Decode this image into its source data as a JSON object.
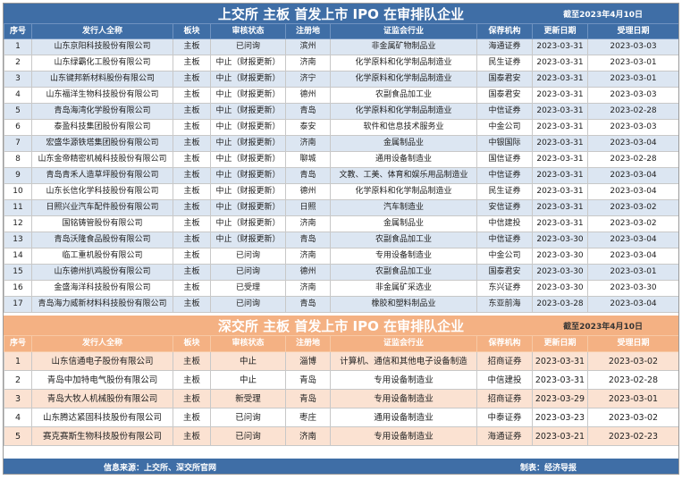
{
  "sh": {
    "title": "上交所 主板 首发上市 IPO 在审排队企业",
    "date": "截至2023年4月10日",
    "headers": [
      "序号",
      "发行人全称",
      "板块",
      "审核状态",
      "注册地",
      "证监会行业",
      "保荐机构",
      "更新日期",
      "受理日期"
    ],
    "rows": [
      [
        "1",
        "山东京阳科技股份有限公司",
        "主板",
        "已问询",
        "滨州",
        "非金属矿物制品业",
        "海通证券",
        "2023-03-31",
        "2023-03-03"
      ],
      [
        "2",
        "山东绿霸化工股份有限公司",
        "主板",
        "中止（财报更新）",
        "济南",
        "化学原料和化学制品制造业",
        "民生证券",
        "2023-03-31",
        "2023-03-01"
      ],
      [
        "3",
        "山东键邦新材料股份有限公司",
        "主板",
        "中止（财报更新）",
        "济宁",
        "化学原料和化学制品制造业",
        "国泰君安",
        "2023-03-31",
        "2023-03-01"
      ],
      [
        "4",
        "山东福洋生物科技股份有限公司",
        "主板",
        "中止（财报更新）",
        "德州",
        "农副食品加工业",
        "国泰君安",
        "2023-03-31",
        "2023-03-03"
      ],
      [
        "5",
        "青岛海湾化学股份有限公司",
        "主板",
        "中止（财报更新）",
        "青岛",
        "化学原料和化学制品制造业",
        "中信证券",
        "2023-03-31",
        "2023-02-28"
      ],
      [
        "6",
        "泰盈科技集团股份有限公司",
        "主板",
        "中止（财报更新）",
        "泰安",
        "软件和信息技术服务业",
        "中金公司",
        "2023-03-31",
        "2023-03-03"
      ],
      [
        "7",
        "宏盛华源铁塔集团股份有限公司",
        "主板",
        "中止（财报更新）",
        "济南",
        "金属制品业",
        "中银国际",
        "2023-03-31",
        "2023-03-04"
      ],
      [
        "8",
        "山东金帝精密机械科技股份有限公司",
        "主板",
        "中止（财报更新）",
        "聊城",
        "通用设备制造业",
        "国信证券",
        "2023-03-31",
        "2023-02-28"
      ],
      [
        "9",
        "青岛青禾人造草坪股份有限公司",
        "主板",
        "中止（财报更新）",
        "青岛",
        "文教、工美、体育和娱乐用品制造业",
        "中信证券",
        "2023-03-31",
        "2023-03-04"
      ],
      [
        "10",
        "山东长信化学科技股份有限公司",
        "主板",
        "中止（财报更新）",
        "德州",
        "化学原料和化学制品制造业",
        "民生证券",
        "2023-03-31",
        "2023-03-04"
      ],
      [
        "11",
        "日照兴业汽车配件股份有限公司",
        "主板",
        "中止（财报更新）",
        "日照",
        "汽车制造业",
        "安信证券",
        "2023-03-31",
        "2023-03-02"
      ],
      [
        "12",
        "国铭铸管股份有限公司",
        "主板",
        "中止（财报更新）",
        "济南",
        "金属制品业",
        "中信建投",
        "2023-03-31",
        "2023-03-02"
      ],
      [
        "13",
        "青岛沃隆食品股份有限公司",
        "主板",
        "中止（财报更新）",
        "青岛",
        "农副食品加工业",
        "中信证券",
        "2023-03-30",
        "2023-03-04"
      ],
      [
        "14",
        "临工重机股份有限公司",
        "主板",
        "已问询",
        "济南",
        "专用设备制造业",
        "中金公司",
        "2023-03-30",
        "2023-03-04"
      ],
      [
        "15",
        "山东德州扒鸡股份有限公司",
        "主板",
        "已问询",
        "德州",
        "农副食品加工业",
        "国泰君安",
        "2023-03-30",
        "2023-03-01"
      ],
      [
        "16",
        "金盛海洋科技股份有限公司",
        "主板",
        "已受理",
        "济南",
        "非金属矿采选业",
        "东兴证券",
        "2023-03-30",
        "2023-03-30"
      ],
      [
        "17",
        "青岛海力威新材料科技股份有限公司",
        "主板",
        "已问询",
        "青岛",
        "橡胶和塑料制品业",
        "东亚前海",
        "2023-03-28",
        "2023-03-04"
      ]
    ]
  },
  "sz": {
    "title": "深交所 主板 首发上市 IPO 在审排队企业",
    "date": "截至2023年4月10日",
    "headers": [
      "序号",
      "发行人全称",
      "板块",
      "审核状态",
      "注册地",
      "证监会行业",
      "保荐机构",
      "更新日期",
      "受理日期"
    ],
    "rows": [
      [
        "1",
        "山东信通电子股份有限公司",
        "主板",
        "中止",
        "淄博",
        "计算机、通信和其他电子设备制造",
        "招商证券",
        "2023-03-31",
        "2023-03-02"
      ],
      [
        "2",
        "青岛中加特电气股份有限公司",
        "主板",
        "中止",
        "青岛",
        "专用设备制造业",
        "中信建投",
        "2023-03-31",
        "2023-02-28"
      ],
      [
        "3",
        "青岛大牧人机械股份有限公司",
        "主板",
        "新受理",
        "青岛",
        "专用设备制造业",
        "招商证券",
        "2023-03-29",
        "2023-03-01"
      ],
      [
        "4",
        "山东腾达紧固科技股份有限公司",
        "主板",
        "已问询",
        "枣庄",
        "通用设备制造业",
        "中泰证券",
        "2023-03-23",
        "2023-03-02"
      ],
      [
        "5",
        "赛克赛斯生物科技股份有限公司",
        "主板",
        "已问询",
        "济南",
        "专用设备制造业",
        "海通证券",
        "2023-03-21",
        "2023-02-23"
      ]
    ]
  },
  "footer": {
    "source": "信息来源：上交所、深交所官网",
    "maker": "制表：经济导报"
  }
}
